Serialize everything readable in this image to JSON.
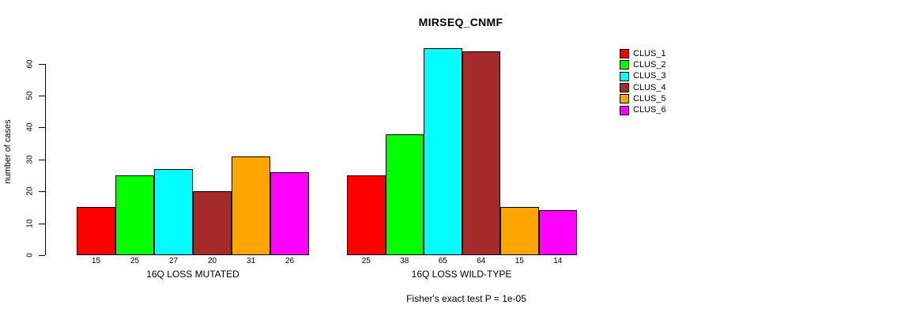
{
  "chart_data": {
    "type": "bar",
    "title": "MIRSEQ_CNMF",
    "ylabel": "number of cases",
    "xlabel": "",
    "ylim": [
      0,
      60
    ],
    "yticks": [
      0,
      10,
      20,
      30,
      40,
      50,
      60
    ],
    "grid": false,
    "legend_position": "top-right",
    "categories": [
      "16Q LOSS MUTATED",
      "16Q LOSS WILD-TYPE"
    ],
    "series": [
      {
        "name": "CLUS_1",
        "color": "#FF0000",
        "values": [
          15,
          25
        ]
      },
      {
        "name": "CLUS_2",
        "color": "#00FF00",
        "values": [
          25,
          38
        ]
      },
      {
        "name": "CLUS_3",
        "color": "#00FFFF",
        "values": [
          27,
          65
        ]
      },
      {
        "name": "CLUS_4",
        "color": "#A52A2A",
        "values": [
          20,
          64
        ]
      },
      {
        "name": "CLUS_5",
        "color": "#FFA500",
        "values": [
          31,
          15
        ]
      },
      {
        "name": "CLUS_6",
        "color": "#FF00FF",
        "values": [
          26,
          14
        ]
      }
    ],
    "bar_value_labels": {
      "16Q LOSS MUTATED": [
        15,
        25,
        27,
        20,
        31,
        26
      ],
      "16Q LOSS WILD-TYPE": [
        25,
        38,
        65,
        64,
        15,
        14
      ]
    },
    "annotation": "Fisher's exact test P = 1e-05"
  }
}
